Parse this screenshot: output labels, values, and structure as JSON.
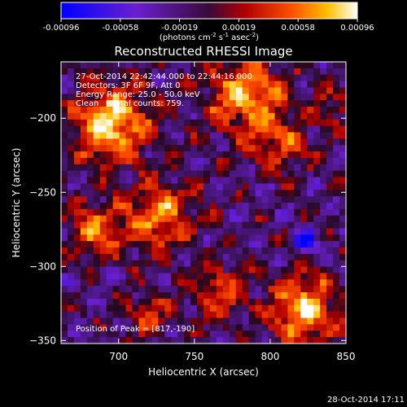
{
  "chart_data": {
    "type": "heatmap",
    "title": "Reconstructed RHESSI Image",
    "xlabel": "Heliocentric X (arcsec)",
    "ylabel": "Heliocentric Y (arcsec)",
    "xlim": [
      662,
      850
    ],
    "ylim": [
      -352,
      -162
    ],
    "x_ticks": [
      700,
      750,
      800,
      850
    ],
    "y_ticks": [
      -200,
      -250,
      -300,
      -350
    ],
    "colorbar": {
      "ticks": [
        "-0.00096",
        "-0.00058",
        "-0.00019",
        "0.00019",
        "0.00058",
        "0.00096"
      ],
      "range": [
        -0.00096,
        0.00096
      ],
      "unit_base": "(photons cm",
      "unit_exp1": "-2",
      "unit_mid": " s",
      "unit_exp2": "-1",
      "unit_end": " asec",
      "unit_exp3": "-2",
      "unit_close": ")"
    },
    "annotations": [
      "27-Oct-2014 22:42:44.000 to 22:44:16.000",
      "Detectors: 3F 6F 9F, Att 0",
      "Energy Range: 25.0 - 50.0 keV",
      "Clean     Total counts: 759.",
      "Position of Peak = [817,-190]"
    ],
    "peak": [
      817,
      -190
    ],
    "footer": "28-Oct-2014 17:11"
  },
  "colors": {
    "background": "#000000",
    "foreground": "#ffffff"
  }
}
